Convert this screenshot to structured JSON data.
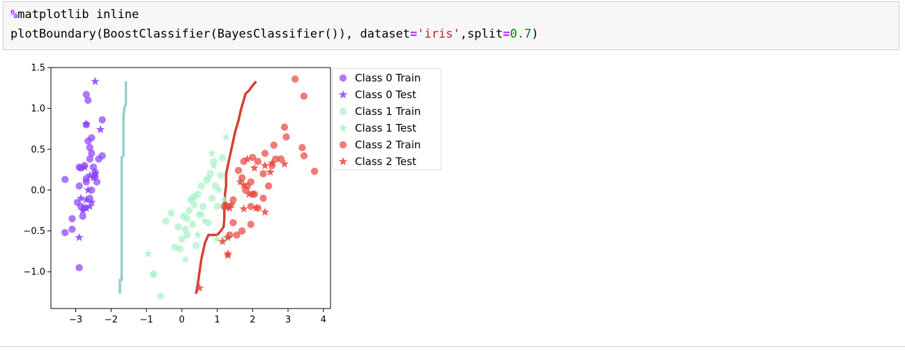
{
  "cell": {
    "line1": {
      "magic": "%",
      "text": "matplotlib inline"
    },
    "line2": {
      "before": "plotBoundary(BoostClassifier(BayesClassifier()), dataset",
      "eq1": "=",
      "str": "'iris'",
      "mid": ",split",
      "eq2": "=",
      "num": "0.7",
      "after": ")"
    }
  },
  "colors": {
    "class0": "#8a3ffc",
    "class1": "#a8f2c8",
    "class2": "#e8453c",
    "boundary_left": "#99cccc",
    "boundary_right": "#d64030"
  },
  "chart_data": {
    "type": "scatter",
    "title": "",
    "xlabel": "",
    "ylabel": "",
    "xlim": [
      -3.7,
      4.2
    ],
    "ylim": [
      -1.45,
      1.5
    ],
    "xticks": [
      -3,
      -2,
      -1,
      0,
      1,
      2,
      3,
      4
    ],
    "yticks": [
      -1.0,
      -0.5,
      0.0,
      0.5,
      1.0,
      1.5
    ],
    "xtick_labels": [
      "−3",
      "−2",
      "−1",
      "0",
      "1",
      "2",
      "3",
      "4"
    ],
    "ytick_labels": [
      "−1.0",
      "−0.5",
      "0.0",
      "0.5",
      "1.0",
      "1.5"
    ],
    "legend_position": "outside right, top",
    "grid": false,
    "series": [
      {
        "name": "Class 0 Train",
        "marker": "circle",
        "color": "#8a3ffc",
        "points": [
          [
            -3.3,
            0.13
          ],
          [
            -3.3,
            -0.52
          ],
          [
            -3.1,
            -0.48
          ],
          [
            -3.1,
            -0.35
          ],
          [
            -2.9,
            -0.95
          ],
          [
            -2.85,
            -0.2
          ],
          [
            -2.9,
            0.05
          ],
          [
            -2.85,
            0.27
          ],
          [
            -2.75,
            0.3
          ],
          [
            -2.7,
            1.17
          ],
          [
            -2.65,
            1.1
          ],
          [
            -2.7,
            0.8
          ],
          [
            -2.65,
            0.6
          ],
          [
            -2.6,
            0.52
          ],
          [
            -2.55,
            0.64
          ],
          [
            -2.55,
            0.45
          ],
          [
            -2.6,
            0.38
          ],
          [
            -2.5,
            0.28
          ],
          [
            -2.45,
            0.22
          ],
          [
            -2.4,
            0.1
          ],
          [
            -2.35,
            0.38
          ],
          [
            -2.25,
            0.42
          ],
          [
            -2.25,
            0.86
          ],
          [
            -2.8,
            -0.32
          ],
          [
            -2.75,
            -0.22
          ],
          [
            -2.7,
            0.1
          ],
          [
            -2.6,
            -0.1
          ],
          [
            -2.55,
            0.0
          ],
          [
            -2.95,
            -0.15
          ],
          [
            -2.7,
            0.14
          ],
          [
            -2.9,
            0.28
          ],
          [
            -2.45,
            0.17
          ]
        ]
      },
      {
        "name": "Class 0 Test",
        "marker": "star",
        "color": "#8a3ffc",
        "points": [
          [
            -2.45,
            1.33
          ],
          [
            -2.3,
            0.74
          ],
          [
            -2.7,
            0.81
          ],
          [
            -2.9,
            -0.58
          ],
          [
            -2.6,
            -0.2
          ],
          [
            -2.8,
            -0.25
          ],
          [
            -2.5,
            0.15
          ],
          [
            -2.75,
            0.28
          ],
          [
            -2.65,
            0.0
          ],
          [
            -2.45,
            0.2
          ],
          [
            -2.55,
            -0.15
          ],
          [
            -2.7,
            -0.12
          ],
          [
            -2.85,
            -0.1
          ],
          [
            -2.6,
            0.18
          ],
          [
            -2.7,
            -0.22
          ]
        ]
      },
      {
        "name": "Class 1 Train",
        "marker": "circle",
        "color": "#a8f2c8",
        "points": [
          [
            -0.6,
            -1.3
          ],
          [
            -0.45,
            -0.38
          ],
          [
            -0.3,
            -0.28
          ],
          [
            -0.2,
            -0.7
          ],
          [
            -0.1,
            -0.45
          ],
          [
            -0.05,
            -0.72
          ],
          [
            0.0,
            -0.6
          ],
          [
            0.05,
            -0.32
          ],
          [
            0.1,
            -0.48
          ],
          [
            0.15,
            -0.35
          ],
          [
            0.2,
            -0.25
          ],
          [
            0.25,
            -0.12
          ],
          [
            0.3,
            -0.42
          ],
          [
            0.35,
            -0.18
          ],
          [
            0.4,
            -0.68
          ],
          [
            0.45,
            -0.05
          ],
          [
            0.5,
            -0.3
          ],
          [
            0.55,
            0.05
          ],
          [
            0.6,
            -0.2
          ],
          [
            0.7,
            0.12
          ],
          [
            0.75,
            -0.4
          ],
          [
            0.8,
            0.2
          ],
          [
            0.85,
            -0.1
          ],
          [
            0.9,
            0.35
          ],
          [
            0.95,
            0.05
          ],
          [
            1.0,
            -0.2
          ],
          [
            1.1,
            0.18
          ],
          [
            1.15,
            0.4
          ],
          [
            1.2,
            -0.6
          ],
          [
            -0.8,
            -1.03
          ],
          [
            0.15,
            -0.55
          ],
          [
            0.35,
            -0.08
          ]
        ]
      },
      {
        "name": "Class 1 Test",
        "marker": "star",
        "color": "#a8f2c8",
        "points": [
          [
            -0.95,
            -0.78
          ],
          [
            -0.8,
            -1.03
          ],
          [
            0.1,
            -0.85
          ],
          [
            0.3,
            -0.1
          ],
          [
            0.55,
            -0.3
          ],
          [
            0.75,
            0.15
          ],
          [
            0.85,
            0.45
          ],
          [
            0.9,
            0.3
          ],
          [
            1.05,
            0.0
          ],
          [
            1.25,
            0.65
          ],
          [
            1.2,
            -0.12
          ],
          [
            0.65,
            -0.38
          ],
          [
            0.45,
            -0.55
          ],
          [
            1.0,
            -0.6
          ]
        ]
      },
      {
        "name": "Class 2 Train",
        "marker": "circle",
        "color": "#e8453c",
        "points": [
          [
            3.2,
            1.36
          ],
          [
            3.45,
            1.15
          ],
          [
            2.9,
            0.77
          ],
          [
            2.95,
            0.65
          ],
          [
            3.4,
            0.52
          ],
          [
            3.45,
            0.42
          ],
          [
            3.75,
            0.23
          ],
          [
            2.6,
            0.55
          ],
          [
            2.35,
            0.45
          ],
          [
            2.15,
            0.35
          ],
          [
            2.0,
            0.4
          ],
          [
            2.3,
            0.2
          ],
          [
            1.95,
            0.1
          ],
          [
            1.85,
            0.05
          ],
          [
            2.05,
            -0.05
          ],
          [
            2.3,
            -0.1
          ],
          [
            1.6,
            0.24
          ],
          [
            1.7,
            0.15
          ],
          [
            1.8,
            0.0
          ],
          [
            2.45,
            0.05
          ],
          [
            1.45,
            -0.12
          ],
          [
            1.3,
            -0.2
          ],
          [
            1.2,
            -0.2
          ],
          [
            1.45,
            -0.4
          ],
          [
            1.55,
            -0.55
          ],
          [
            1.7,
            -0.5
          ],
          [
            1.95,
            -0.2
          ],
          [
            2.15,
            -0.22
          ],
          [
            1.95,
            -0.42
          ],
          [
            2.8,
            0.38
          ],
          [
            2.55,
            0.3
          ],
          [
            2.65,
            0.38
          ],
          [
            1.35,
            -0.55
          ],
          [
            2.0,
            -0.05
          ],
          [
            1.75,
            0.35
          ]
        ]
      },
      {
        "name": "Class 2 Test",
        "marker": "star",
        "color": "#e8453c",
        "points": [
          [
            0.5,
            -1.2
          ],
          [
            1.15,
            -0.63
          ],
          [
            1.3,
            -0.58
          ],
          [
            1.3,
            -0.8
          ],
          [
            1.4,
            -0.18
          ],
          [
            1.25,
            -0.18
          ],
          [
            1.75,
            0.06
          ],
          [
            1.85,
            0.38
          ],
          [
            2.05,
            0.27
          ],
          [
            2.35,
            0.3
          ],
          [
            2.55,
            0.33
          ],
          [
            2.9,
            0.32
          ],
          [
            2.35,
            -0.27
          ],
          [
            1.75,
            -0.23
          ],
          [
            2.1,
            -0.22
          ],
          [
            1.65,
            0.1
          ],
          [
            1.9,
            -0.05
          ],
          [
            1.3,
            -0.78
          ],
          [
            1.35,
            -0.22
          ],
          [
            2.5,
            0.22
          ]
        ]
      }
    ],
    "boundaries": [
      {
        "color": "#99cccc",
        "points": [
          [
            -1.75,
            -1.27
          ],
          [
            -1.75,
            -1.15
          ],
          [
            -1.75,
            -1.1
          ],
          [
            -1.7,
            -1.1
          ],
          [
            -1.7,
            -0.9
          ],
          [
            -1.7,
            0.4
          ],
          [
            -1.65,
            0.42
          ],
          [
            -1.65,
            0.9
          ],
          [
            -1.62,
            1.02
          ],
          [
            -1.58,
            1.05
          ],
          [
            -1.58,
            1.33
          ]
        ]
      },
      {
        "color": "#d64030",
        "points": [
          [
            0.4,
            -1.27
          ],
          [
            0.45,
            -1.15
          ],
          [
            0.5,
            -1.0
          ],
          [
            0.55,
            -0.85
          ],
          [
            0.6,
            -0.75
          ],
          [
            0.65,
            -0.65
          ],
          [
            0.7,
            -0.6
          ],
          [
            0.75,
            -0.55
          ],
          [
            0.85,
            -0.55
          ],
          [
            1.0,
            -0.55
          ],
          [
            1.1,
            -0.5
          ],
          [
            1.18,
            -0.45
          ],
          [
            1.2,
            -0.35
          ],
          [
            1.2,
            -0.2
          ],
          [
            1.22,
            -0.05
          ],
          [
            1.25,
            0.05
          ],
          [
            1.25,
            0.2
          ],
          [
            1.3,
            0.3
          ],
          [
            1.35,
            0.4
          ],
          [
            1.4,
            0.5
          ],
          [
            1.45,
            0.6
          ],
          [
            1.5,
            0.7
          ],
          [
            1.55,
            0.78
          ],
          [
            1.6,
            0.85
          ],
          [
            1.65,
            0.95
          ],
          [
            1.7,
            1.03
          ],
          [
            1.75,
            1.1
          ],
          [
            1.8,
            1.18
          ],
          [
            1.9,
            1.22
          ],
          [
            2.0,
            1.28
          ],
          [
            2.1,
            1.33
          ]
        ]
      }
    ]
  }
}
